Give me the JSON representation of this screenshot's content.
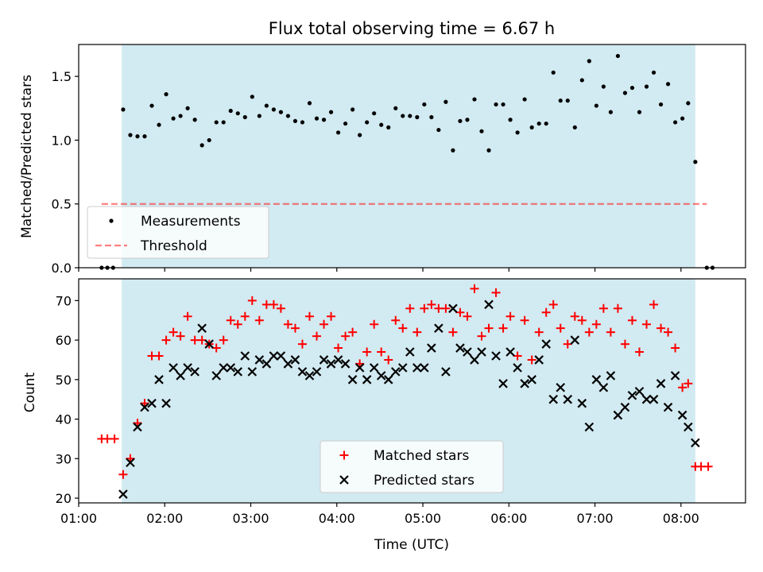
{
  "colors": {
    "shade": "#add8e6",
    "measurements": "#000000",
    "threshold": "#ff0000",
    "matched": "#ff0000",
    "predicted": "#000000"
  },
  "chart_data": [
    {
      "type": "scatter",
      "title": "Flux total observing time = 6.67 h",
      "xlabel": "",
      "ylabel": "Matched/Predicted stars",
      "xlim": [
        "01:00",
        "08:45"
      ],
      "ylim": [
        0,
        1.75
      ],
      "yticks": [
        0.0,
        0.5,
        1.0,
        1.5
      ],
      "yticklabels": [
        "0.0",
        "0.5",
        "1.0",
        "1.5"
      ],
      "grid": false,
      "shaded_interval": [
        "01:30",
        "08:10"
      ],
      "legend": {
        "placement": "lower-left",
        "entries": [
          {
            "label": "Measurements",
            "marker": "dot"
          },
          {
            "label": "Threshold",
            "marker": "dashed-line"
          }
        ]
      },
      "threshold": {
        "value": 0.5,
        "x_start": "01:16",
        "x_end": "08:18"
      },
      "series": [
        {
          "name": "Measurements",
          "points": [
            [
              "01:16",
              0.0
            ],
            [
              "01:20",
              0.0
            ],
            [
              "01:24",
              0.0
            ],
            [
              "01:31",
              1.24
            ],
            [
              "01:36",
              1.04
            ],
            [
              "01:41",
              1.03
            ],
            [
              "01:46",
              1.03
            ],
            [
              "01:51",
              1.27
            ],
            [
              "01:56",
              1.12
            ],
            [
              "02:01",
              1.36
            ],
            [
              "02:06",
              1.17
            ],
            [
              "02:11",
              1.19
            ],
            [
              "02:16",
              1.25
            ],
            [
              "02:21",
              1.16
            ],
            [
              "02:26",
              0.96
            ],
            [
              "02:31",
              1.0
            ],
            [
              "02:36",
              1.14
            ],
            [
              "02:41",
              1.14
            ],
            [
              "02:46",
              1.23
            ],
            [
              "02:51",
              1.21
            ],
            [
              "02:56",
              1.18
            ],
            [
              "03:01",
              1.34
            ],
            [
              "03:06",
              1.19
            ],
            [
              "03:11",
              1.27
            ],
            [
              "03:16",
              1.24
            ],
            [
              "03:21",
              1.22
            ],
            [
              "03:26",
              1.19
            ],
            [
              "03:31",
              1.15
            ],
            [
              "03:36",
              1.14
            ],
            [
              "03:41",
              1.29
            ],
            [
              "03:46",
              1.17
            ],
            [
              "03:51",
              1.16
            ],
            [
              "03:56",
              1.22
            ],
            [
              "04:01",
              1.06
            ],
            [
              "04:06",
              1.13
            ],
            [
              "04:11",
              1.24
            ],
            [
              "04:16",
              1.04
            ],
            [
              "04:21",
              1.14
            ],
            [
              "04:26",
              1.21
            ],
            [
              "04:31",
              1.12
            ],
            [
              "04:36",
              1.1
            ],
            [
              "04:41",
              1.25
            ],
            [
              "04:46",
              1.19
            ],
            [
              "04:51",
              1.19
            ],
            [
              "04:56",
              1.18
            ],
            [
              "05:01",
              1.28
            ],
            [
              "05:06",
              1.18
            ],
            [
              "05:11",
              1.08
            ],
            [
              "05:16",
              1.3
            ],
            [
              "05:21",
              0.92
            ],
            [
              "05:26",
              1.15
            ],
            [
              "05:31",
              1.16
            ],
            [
              "05:36",
              1.32
            ],
            [
              "05:41",
              1.07
            ],
            [
              "05:46",
              0.92
            ],
            [
              "05:51",
              1.28
            ],
            [
              "05:56",
              1.28
            ],
            [
              "06:01",
              1.16
            ],
            [
              "06:06",
              1.06
            ],
            [
              "06:11",
              1.32
            ],
            [
              "06:16",
              1.1
            ],
            [
              "06:21",
              1.13
            ],
            [
              "06:26",
              1.13
            ],
            [
              "06:31",
              1.53
            ],
            [
              "06:36",
              1.31
            ],
            [
              "06:41",
              1.31
            ],
            [
              "06:46",
              1.1
            ],
            [
              "06:51",
              1.47
            ],
            [
              "06:56",
              1.62
            ],
            [
              "07:01",
              1.27
            ],
            [
              "07:06",
              1.42
            ],
            [
              "07:11",
              1.22
            ],
            [
              "07:16",
              1.66
            ],
            [
              "07:21",
              1.37
            ],
            [
              "07:26",
              1.41
            ],
            [
              "07:31",
              1.22
            ],
            [
              "07:36",
              1.42
            ],
            [
              "07:41",
              1.53
            ],
            [
              "07:46",
              1.28
            ],
            [
              "07:51",
              1.44
            ],
            [
              "07:56",
              1.14
            ],
            [
              "08:01",
              1.17
            ],
            [
              "08:05",
              1.29
            ],
            [
              "08:10",
              0.83
            ],
            [
              "08:18",
              0.0
            ],
            [
              "08:22",
              0.0
            ]
          ]
        }
      ]
    },
    {
      "type": "scatter",
      "title": "",
      "xlabel": "Time (UTC)",
      "ylabel": "Count",
      "xlim": [
        "01:00",
        "08:45"
      ],
      "ylim": [
        18.8,
        75.5
      ],
      "xticks": [
        "01:00",
        "02:00",
        "03:00",
        "04:00",
        "05:00",
        "06:00",
        "07:00",
        "08:00"
      ],
      "yticks": [
        20,
        30,
        40,
        50,
        60,
        70
      ],
      "yticklabels": [
        "20",
        "30",
        "40",
        "50",
        "60",
        "70"
      ],
      "grid": false,
      "shaded_interval": [
        "01:30",
        "08:10"
      ],
      "legend": {
        "placement": "lower-center",
        "entries": [
          {
            "label": "Matched stars",
            "marker": "plus"
          },
          {
            "label": "Predicted stars",
            "marker": "x"
          }
        ]
      },
      "series": [
        {
          "name": "Matched stars",
          "points": [
            [
              "01:16",
              35
            ],
            [
              "01:20",
              35
            ],
            [
              "01:25",
              35
            ],
            [
              "01:31",
              26
            ],
            [
              "01:36",
              30
            ],
            [
              "01:41",
              39
            ],
            [
              "01:46",
              44
            ],
            [
              "01:51",
              56
            ],
            [
              "01:56",
              56
            ],
            [
              "02:01",
              60
            ],
            [
              "02:06",
              62
            ],
            [
              "02:11",
              61
            ],
            [
              "02:16",
              66
            ],
            [
              "02:21",
              60
            ],
            [
              "02:26",
              60
            ],
            [
              "02:31",
              59
            ],
            [
              "02:36",
              58
            ],
            [
              "02:41",
              60
            ],
            [
              "02:46",
              65
            ],
            [
              "02:51",
              64
            ],
            [
              "02:56",
              66
            ],
            [
              "03:01",
              70
            ],
            [
              "03:06",
              65
            ],
            [
              "03:11",
              69
            ],
            [
              "03:16",
              69
            ],
            [
              "03:21",
              68
            ],
            [
              "03:26",
              64
            ],
            [
              "03:31",
              63
            ],
            [
              "03:36",
              59
            ],
            [
              "03:41",
              66
            ],
            [
              "03:46",
              61
            ],
            [
              "03:51",
              64
            ],
            [
              "03:56",
              66
            ],
            [
              "04:01",
              58
            ],
            [
              "04:06",
              61
            ],
            [
              "04:11",
              62
            ],
            [
              "04:16",
              54
            ],
            [
              "04:21",
              57
            ],
            [
              "04:26",
              64
            ],
            [
              "04:31",
              57
            ],
            [
              "04:36",
              55
            ],
            [
              "04:41",
              65
            ],
            [
              "04:46",
              63
            ],
            [
              "04:51",
              68
            ],
            [
              "04:56",
              62
            ],
            [
              "05:01",
              68
            ],
            [
              "05:06",
              69
            ],
            [
              "05:11",
              68
            ],
            [
              "05:16",
              68
            ],
            [
              "05:21",
              62
            ],
            [
              "05:26",
              67
            ],
            [
              "05:31",
              66
            ],
            [
              "05:36",
              73
            ],
            [
              "05:41",
              61
            ],
            [
              "05:46",
              63
            ],
            [
              "05:51",
              72
            ],
            [
              "05:56",
              63
            ],
            [
              "06:01",
              66
            ],
            [
              "06:06",
              56
            ],
            [
              "06:11",
              65
            ],
            [
              "06:16",
              55
            ],
            [
              "06:21",
              62
            ],
            [
              "06:26",
              67
            ],
            [
              "06:31",
              69
            ],
            [
              "06:36",
              63
            ],
            [
              "06:41",
              59
            ],
            [
              "06:46",
              66
            ],
            [
              "06:51",
              65
            ],
            [
              "06:56",
              62
            ],
            [
              "07:01",
              64
            ],
            [
              "07:06",
              68
            ],
            [
              "07:11",
              62
            ],
            [
              "07:16",
              68
            ],
            [
              "07:21",
              59
            ],
            [
              "07:26",
              65
            ],
            [
              "07:31",
              57
            ],
            [
              "07:36",
              64
            ],
            [
              "07:41",
              69
            ],
            [
              "07:46",
              63
            ],
            [
              "07:51",
              62
            ],
            [
              "07:56",
              58
            ],
            [
              "08:01",
              48
            ],
            [
              "08:05",
              49
            ],
            [
              "08:10",
              28
            ],
            [
              "08:14",
              28
            ],
            [
              "08:19",
              28
            ]
          ]
        },
        {
          "name": "Predicted stars",
          "points": [
            [
              "01:31",
              21
            ],
            [
              "01:36",
              29
            ],
            [
              "01:41",
              38
            ],
            [
              "01:46",
              43
            ],
            [
              "01:51",
              44
            ],
            [
              "01:56",
              50
            ],
            [
              "02:01",
              44
            ],
            [
              "02:06",
              53
            ],
            [
              "02:11",
              51
            ],
            [
              "02:16",
              53
            ],
            [
              "02:21",
              52
            ],
            [
              "02:26",
              63
            ],
            [
              "02:31",
              59
            ],
            [
              "02:36",
              51
            ],
            [
              "02:41",
              53
            ],
            [
              "02:46",
              53
            ],
            [
              "02:51",
              52
            ],
            [
              "02:56",
              56
            ],
            [
              "03:01",
              52
            ],
            [
              "03:06",
              55
            ],
            [
              "03:11",
              54
            ],
            [
              "03:16",
              56
            ],
            [
              "03:21",
              56
            ],
            [
              "03:26",
              54
            ],
            [
              "03:31",
              55
            ],
            [
              "03:36",
              52
            ],
            [
              "03:41",
              51
            ],
            [
              "03:46",
              52
            ],
            [
              "03:51",
              55
            ],
            [
              "03:56",
              54
            ],
            [
              "04:01",
              55
            ],
            [
              "04:06",
              54
            ],
            [
              "04:11",
              50
            ],
            [
              "04:16",
              53
            ],
            [
              "04:21",
              50
            ],
            [
              "04:26",
              53
            ],
            [
              "04:31",
              51
            ],
            [
              "04:36",
              50
            ],
            [
              "04:41",
              52
            ],
            [
              "04:46",
              53
            ],
            [
              "04:51",
              57
            ],
            [
              "04:56",
              53
            ],
            [
              "05:01",
              53
            ],
            [
              "05:06",
              58
            ],
            [
              "05:11",
              63
            ],
            [
              "05:16",
              52
            ],
            [
              "05:21",
              68
            ],
            [
              "05:26",
              58
            ],
            [
              "05:31",
              57
            ],
            [
              "05:36",
              55
            ],
            [
              "05:41",
              57
            ],
            [
              "05:46",
              69
            ],
            [
              "05:51",
              56
            ],
            [
              "05:56",
              49
            ],
            [
              "06:01",
              57
            ],
            [
              "06:06",
              53
            ],
            [
              "06:11",
              49
            ],
            [
              "06:16",
              50
            ],
            [
              "06:21",
              55
            ],
            [
              "06:26",
              59
            ],
            [
              "06:31",
              45
            ],
            [
              "06:36",
              48
            ],
            [
              "06:41",
              45
            ],
            [
              "06:46",
              60
            ],
            [
              "06:51",
              44
            ],
            [
              "06:56",
              38
            ],
            [
              "07:01",
              50
            ],
            [
              "07:06",
              48
            ],
            [
              "07:11",
              51
            ],
            [
              "07:16",
              41
            ],
            [
              "07:21",
              43
            ],
            [
              "07:26",
              46
            ],
            [
              "07:31",
              47
            ],
            [
              "07:36",
              45
            ],
            [
              "07:41",
              45
            ],
            [
              "07:46",
              49
            ],
            [
              "07:51",
              43
            ],
            [
              "07:56",
              51
            ],
            [
              "08:01",
              41
            ],
            [
              "08:05",
              38
            ],
            [
              "08:10",
              34
            ]
          ]
        }
      ]
    }
  ]
}
